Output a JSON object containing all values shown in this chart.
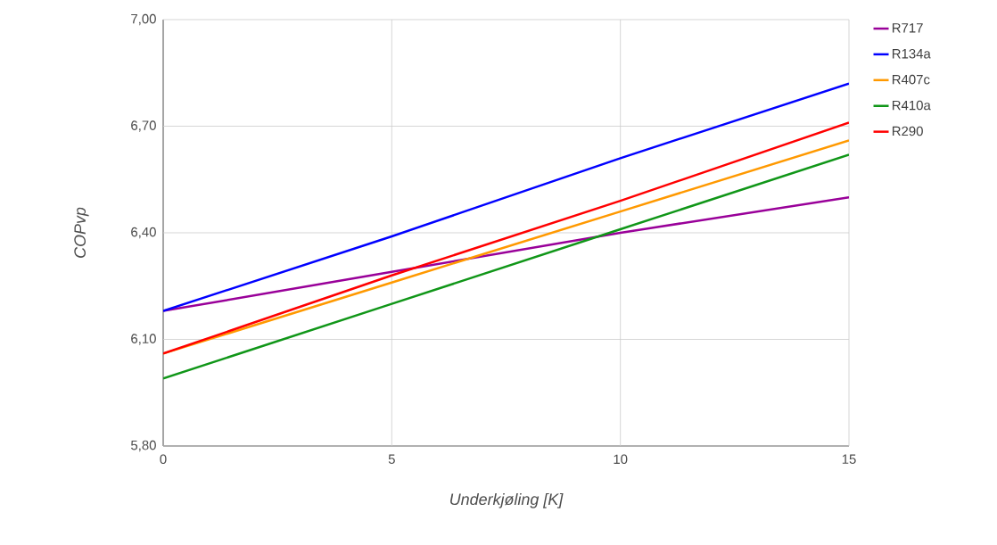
{
  "chart_data": {
    "type": "line",
    "xlabel": "Underkjøling [K]",
    "ylabel": "COPvp",
    "x": [
      0,
      5,
      10,
      15
    ],
    "series": [
      {
        "name": "R717",
        "color": "#990099",
        "values": [
          6.18,
          6.29,
          6.4,
          6.5
        ]
      },
      {
        "name": "R134a",
        "color": "#0000ff",
        "values": [
          6.18,
          6.39,
          6.61,
          6.82
        ]
      },
      {
        "name": "R407c",
        "color": "#ff9900",
        "values": [
          6.06,
          6.26,
          6.46,
          6.66
        ]
      },
      {
        "name": "R410a",
        "color": "#109618",
        "values": [
          5.99,
          6.2,
          6.41,
          6.62
        ]
      },
      {
        "name": "R290",
        "color": "#ff0000",
        "values": [
          6.06,
          6.28,
          6.49,
          6.71
        ]
      }
    ],
    "xlim": [
      0,
      15
    ],
    "xticks": [
      0,
      5,
      10,
      15
    ],
    "ylim": [
      5.8,
      7.0
    ],
    "yticks": [
      {
        "value": 5.8,
        "label": "5,80"
      },
      {
        "value": 6.1,
        "label": "6,10"
      },
      {
        "value": 6.4,
        "label": "6,40"
      },
      {
        "value": 6.7,
        "label": "6,70"
      },
      {
        "value": 7.0,
        "label": "7,00"
      }
    ],
    "grid": true,
    "legend": "right top",
    "marker": "none",
    "line_style": "solid"
  }
}
